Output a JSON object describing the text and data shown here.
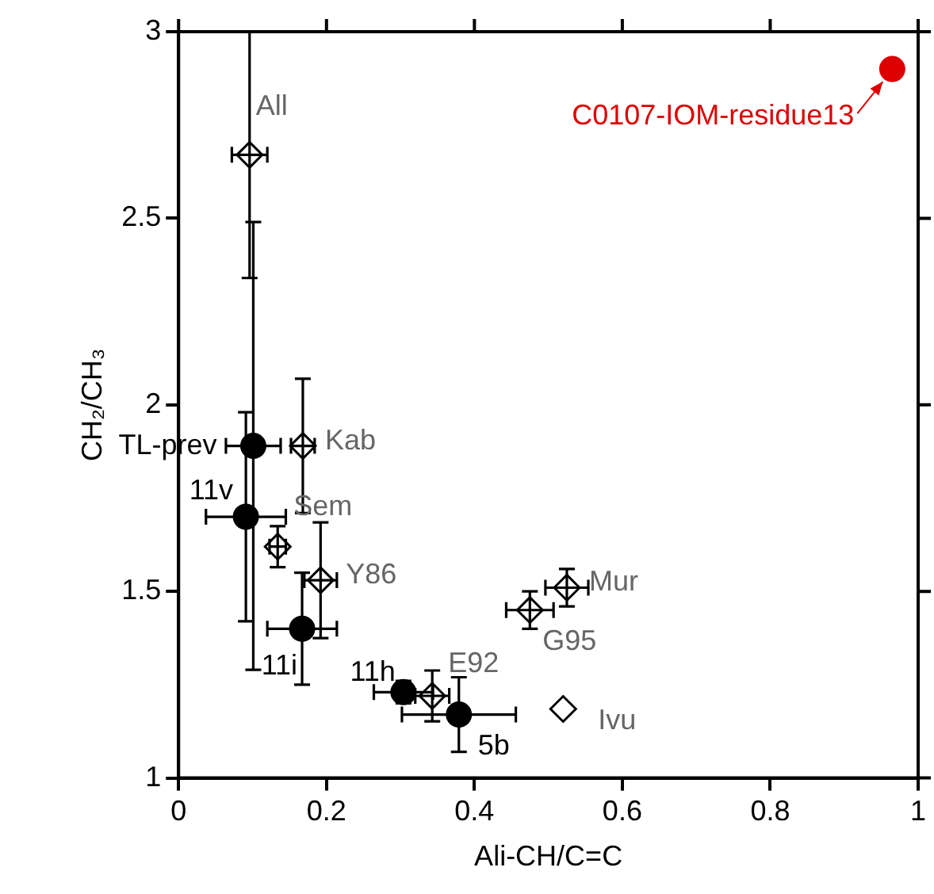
{
  "chart_data": {
    "type": "scatter",
    "xlabel": "Ali-CH/C=C",
    "ylabel": "CH₂/CH₃",
    "xlim": [
      0,
      1
    ],
    "xticks": [
      0,
      0.2,
      0.4,
      0.6,
      0.8,
      1
    ],
    "ylim": [
      1,
      3
    ],
    "yticks": [
      1,
      1.5,
      2,
      2.5,
      3
    ],
    "grid": false,
    "legend": false,
    "series": [
      {
        "color": "#000000",
        "marker": "circle",
        "x": [
          0.101,
          0.091,
          0.167,
          0.304,
          0.379
        ],
        "values": [
          1.89,
          1.7,
          1.4,
          1.23,
          1.17
        ],
        "errors": [
          0.6,
          0.28,
          0.15,
          0.03,
          0.1
        ],
        "xerrors": [
          0.037,
          0.054,
          0.047,
          0.04,
          0.077
        ]
      },
      {
        "color": "#000000",
        "marker": "diamond",
        "x": [
          0.096,
          0.168,
          0.134,
          0.192,
          0.343,
          0.475,
          0.525,
          0.52
        ],
        "values": [
          2.67,
          1.89,
          1.62,
          1.53,
          1.22,
          1.45,
          1.51,
          1.185
        ],
        "errors": [
          0.33,
          0.18,
          0.055,
          0.155,
          0.068,
          0.05,
          0.05,
          null
        ],
        "xerrors": [
          0.024,
          0.016,
          0.011,
          0.022,
          0.023,
          0.032,
          0.029,
          null
        ]
      },
      {
        "color": "#dd0000",
        "marker": "circle",
        "x": [
          0.965
        ],
        "values": [
          2.9
        ]
      }
    ],
    "annotations": [
      {
        "text": "All",
        "x": 0.096,
        "y": 2.67
      },
      {
        "text": "Kab",
        "x": 0.168,
        "y": 1.89
      },
      {
        "text": "TL-prev",
        "x": 0.101,
        "y": 1.89
      },
      {
        "text": "11v",
        "x": 0.091,
        "y": 1.7
      },
      {
        "text": "Sem",
        "x": 0.134,
        "y": 1.62
      },
      {
        "text": "Y86",
        "x": 0.192,
        "y": 1.53
      },
      {
        "text": "11i",
        "x": 0.167,
        "y": 1.4
      },
      {
        "text": "11h",
        "x": 0.304,
        "y": 1.23
      },
      {
        "text": "E92",
        "x": 0.343,
        "y": 1.22
      },
      {
        "text": "5b",
        "x": 0.379,
        "y": 1.17
      },
      {
        "text": "G95",
        "x": 0.475,
        "y": 1.45
      },
      {
        "text": "Mur",
        "x": 0.525,
        "y": 1.51
      },
      {
        "text": "Ivu",
        "x": 0.52,
        "y": 1.185
      },
      {
        "text": "C0107-IOM-residue13",
        "x": 0.965,
        "y": 2.9
      }
    ]
  }
}
